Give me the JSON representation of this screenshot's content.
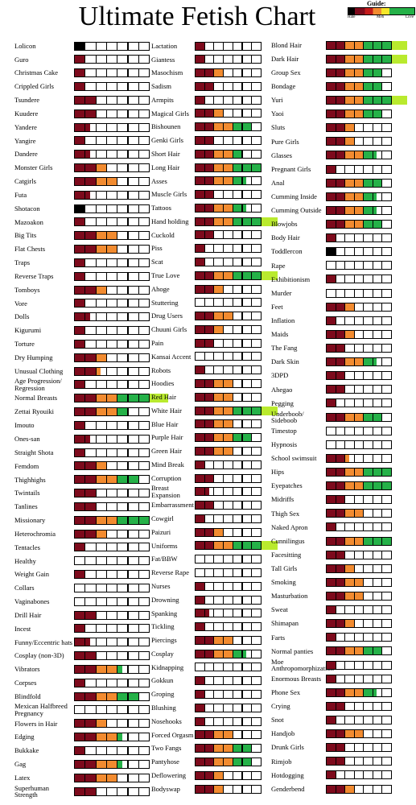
{
  "chart_data": {
    "type": "rating",
    "title": "Ultimate Fetish Chart",
    "guide": {
      "title": "Guide:",
      "labels": [
        "Hate",
        "Meh",
        "Love"
      ]
    },
    "hate_color": "#000000",
    "segment_colors": [
      "#7d0a1c",
      "#f28b30",
      "#25b148",
      "#b9ea2e"
    ],
    "columns": [
      {
        "categories": [
          "Lolicon",
          "Guro",
          "Christmas Cake",
          "Crippled Girls",
          "Tsundere",
          "Kuudere",
          "Yandere",
          "Yangire",
          "Dandere",
          "Monster Girls",
          "Catgirls",
          "Futa",
          "Shotacon",
          "Mazoakon",
          "Big Tits",
          "Flat Chests",
          "Traps",
          "Reverse Traps",
          "Tomboys",
          "Vore",
          "Dolls",
          "Kigurumi",
          "Torture",
          "Dry Humping",
          "Unusual Clothing",
          "Age Progression/ Regression",
          "Normal Breasts",
          "Zettai Ryouiki",
          "Imouto",
          "Ones-san",
          "Straight Shota",
          "Femdom",
          "Thighhighs",
          "Twintails",
          "Tanlines",
          "Missionary",
          "Heterochromia",
          "Tentacles",
          "Healthy",
          "Weight Gain",
          "Collars",
          "Vaginabones",
          "Drill Hair",
          "Incest",
          "Funny/Eccentric hats",
          "Cosplay (non-3D)",
          "Vibrators",
          "Corpses",
          "Blindfold",
          "Mexican Halfbreed Pregnancy",
          "Flowers in Hair",
          "Edging",
          "Bukkake",
          "Gag",
          "Latex",
          "Superhuman Strength"
        ],
        "values": [
          -1,
          1,
          1,
          1,
          2,
          2,
          1.5,
          1,
          1.5,
          3,
          4,
          1.5,
          -1,
          1,
          4,
          4,
          1,
          1,
          3,
          1,
          1.5,
          1,
          1,
          3,
          2.5,
          1,
          8,
          5,
          1,
          1.5,
          1,
          3,
          6,
          2,
          2,
          7,
          3,
          1,
          0,
          1,
          0,
          0,
          2,
          1,
          1.5,
          2,
          4.5,
          1,
          6,
          0,
          3,
          4.5,
          1,
          4.5,
          4,
          2
        ]
      },
      {
        "categories": [
          "Lactation",
          "Giantess",
          "Masochism",
          "Sadism",
          "Armpits",
          "Magical Girls",
          "Bishounen",
          "Genki Girls",
          "Short Hair",
          "Long Hair",
          "Asses",
          "Muscle Girls",
          "Tattoos",
          "Hand holding",
          "Cuckold",
          "Piss",
          "Scat",
          "True Love",
          "Ahoge",
          "Stuttering",
          "Drug Users",
          "Chuuni Girls",
          "Pain",
          "Kansai Accent",
          "Robots",
          "Hoodies",
          "Red Hair",
          "White Hair",
          "Blue Hair",
          "Purple Hair",
          "Green Hair",
          "Mind Break",
          "Corruption",
          "Breast Expansion",
          "Embarrassment",
          "Cowgirl",
          "Paizuri",
          "Uniforms",
          "Fat/BBW",
          "Reverse Rape",
          "Nurses",
          "Drowning",
          "Spanking",
          "Tickling",
          "Piercings",
          "Cosplay",
          "Kidnapping",
          "Gokkun",
          "Groping",
          "Blushing",
          "Nosehooks",
          "Forced Orgasm",
          "Two Fangs",
          "Pantyhose",
          "Deflowering",
          "Bodyswap"
        ],
        "values": [
          1,
          1,
          3,
          2,
          1,
          3,
          6,
          2,
          5,
          7,
          5.5,
          2,
          5.5,
          8,
          2,
          1,
          1,
          8,
          3,
          0,
          4,
          3,
          2,
          0,
          1,
          4,
          4,
          8,
          4,
          6,
          4,
          1,
          2,
          1.5,
          2,
          1,
          3,
          8,
          0,
          0,
          1,
          1,
          1.5,
          1,
          4,
          5.5,
          0,
          1,
          1,
          1,
          1,
          4,
          6,
          6,
          3,
          3
        ]
      },
      {
        "categories": [
          "Blond Hair",
          "Dark Hair",
          "Group Sex",
          "Bondage",
          "Yuri",
          "Yaoi",
          "Sluts",
          "Pure Girls",
          "Glasses",
          "Pregnant Girls",
          "Anal",
          "Cumming Inside",
          "Cumming Outside",
          "Blowjobs",
          "Body Hair",
          "Toddlercon",
          "Rape",
          "Exhibitionism",
          "Murder",
          "Feet",
          "Inflation",
          "Maids",
          "The Fang",
          "Dark Skin",
          "3DPD",
          "Ahegao",
          "Pegging",
          "Underboob/ Sideboob",
          "Timestop",
          "Hypnosis",
          "School swimsuit",
          "Hips",
          "Eyepatches",
          "Midriffs",
          "Thigh Sex",
          "Naked Apron",
          "Cunnilingus",
          "Facesitting",
          "Tall Girls",
          "Smoking",
          "Masturbation",
          "Sweat",
          "Shimapan",
          "Farts",
          "Normal panties",
          "Moe Anthropomorphization",
          "Enormous Breasts",
          "Phone Sex",
          "Crying",
          "Snot",
          "Handjob",
          "Drunk Girls",
          "Rimjob",
          "Hotdogging",
          "Genderbend"
        ],
        "values": [
          8,
          8,
          6,
          6,
          8,
          6,
          3,
          3,
          5.5,
          1,
          6,
          5.5,
          5.5,
          6,
          1,
          -1,
          0,
          1,
          0,
          3,
          1,
          3,
          2,
          5.5,
          2,
          2,
          1,
          6,
          0,
          0,
          2.5,
          7,
          7,
          2,
          4,
          1,
          7,
          2,
          3,
          4,
          4,
          1,
          3,
          1,
          6,
          1,
          1,
          5.5,
          2,
          1,
          4,
          2,
          2,
          1,
          3
        ]
      }
    ]
  }
}
